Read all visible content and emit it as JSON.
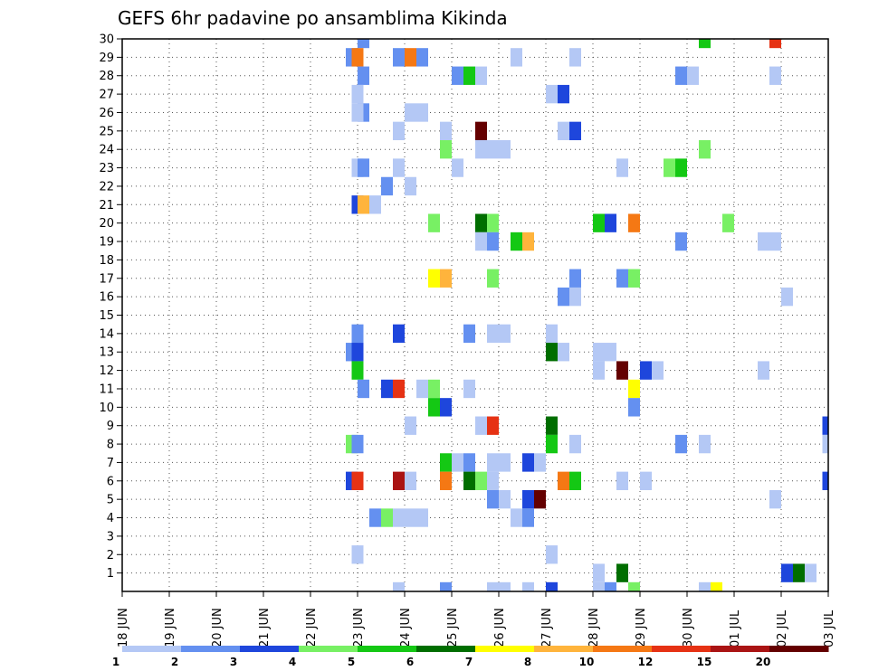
{
  "chart_data": {
    "type": "heatmap",
    "title": "GEFS 6hr padavine po ansamblima Kikinda",
    "xlabel": "",
    "ylabel": "",
    "x_tick_labels": [
      "18 JUN",
      "19 JUN",
      "20 JUN",
      "21 JUN",
      "22 JUN",
      "23 JUN",
      "24 JUN",
      "25 JUN",
      "26 JUN",
      "27 JUN",
      "28 JUN",
      "29 JUN",
      "30 JUN",
      "01 JUL",
      "02 JUL",
      "03 JUL"
    ],
    "y_tick_labels": [
      "1",
      "2",
      "3",
      "4",
      "5",
      "6",
      "7",
      "8",
      "9",
      "10",
      "11",
      "12",
      "13",
      "14",
      "15",
      "16",
      "17",
      "18",
      "19",
      "20",
      "21",
      "22",
      "23",
      "24",
      "25",
      "26",
      "27",
      "28",
      "29",
      "30"
    ],
    "xlim_days": [
      0,
      15
    ],
    "ylim": [
      0,
      30
    ],
    "grid": true,
    "legend_placement": "bottom",
    "legend": {
      "labels": [
        "1",
        "2",
        "3",
        "4",
        "5",
        "6",
        "7",
        "8",
        "10",
        "12",
        "15",
        "20"
      ],
      "colors": [
        "#b4c8f5",
        "#6490f0",
        "#1e46dc",
        "#78f064",
        "#14c814",
        "#006e00",
        "#ffff00",
        "#ffb43c",
        "#f57814",
        "#e63214",
        "#aa1414",
        "#640000"
      ]
    },
    "cell_width_days": 0.25,
    "cells": [
      {
        "d": 5.125,
        "m": 30,
        "c": 2
      },
      {
        "d": 12.375,
        "m": 30,
        "c": 5
      },
      {
        "d": 13.875,
        "m": 30,
        "c": 10
      },
      {
        "d": 4.875,
        "m": 29,
        "c": 2
      },
      {
        "d": 5.0,
        "m": 29,
        "c": 9
      },
      {
        "d": 5.875,
        "m": 29,
        "c": 2
      },
      {
        "d": 6.125,
        "m": 29,
        "c": 9
      },
      {
        "d": 6.375,
        "m": 29,
        "c": 2
      },
      {
        "d": 8.375,
        "m": 29,
        "c": 1
      },
      {
        "d": 9.625,
        "m": 29,
        "c": 1
      },
      {
        "d": 5.125,
        "m": 28,
        "c": 2
      },
      {
        "d": 7.125,
        "m": 28,
        "c": 2
      },
      {
        "d": 7.375,
        "m": 28,
        "c": 5
      },
      {
        "d": 7.625,
        "m": 28,
        "c": 1
      },
      {
        "d": 11.875,
        "m": 28,
        "c": 2
      },
      {
        "d": 12.125,
        "m": 28,
        "c": 1
      },
      {
        "d": 13.875,
        "m": 28,
        "c": 1
      },
      {
        "d": 5.0,
        "m": 27,
        "c": 1
      },
      {
        "d": 9.125,
        "m": 27,
        "c": 1
      },
      {
        "d": 9.375,
        "m": 27,
        "c": 3
      },
      {
        "d": 5.125,
        "m": 26,
        "c": 2
      },
      {
        "d": 5.0,
        "m": 26,
        "c": 1
      },
      {
        "d": 6.125,
        "m": 26,
        "c": 1
      },
      {
        "d": 6.375,
        "m": 26,
        "c": 1
      },
      {
        "d": 5.875,
        "m": 25,
        "c": 1
      },
      {
        "d": 6.875,
        "m": 25,
        "c": 1
      },
      {
        "d": 7.625,
        "m": 25,
        "c": 12
      },
      {
        "d": 9.375,
        "m": 25,
        "c": 1
      },
      {
        "d": 9.625,
        "m": 25,
        "c": 3
      },
      {
        "d": 6.875,
        "m": 24,
        "c": 4
      },
      {
        "d": 7.625,
        "m": 24,
        "c": 1
      },
      {
        "d": 7.875,
        "m": 24,
        "c": 1
      },
      {
        "d": 8.125,
        "m": 24,
        "c": 1
      },
      {
        "d": 12.375,
        "m": 24,
        "c": 4
      },
      {
        "d": 5.0,
        "m": 23,
        "c": 1
      },
      {
        "d": 5.125,
        "m": 23,
        "c": 2
      },
      {
        "d": 5.875,
        "m": 23,
        "c": 1
      },
      {
        "d": 7.125,
        "m": 23,
        "c": 1
      },
      {
        "d": 10.625,
        "m": 23,
        "c": 1
      },
      {
        "d": 11.625,
        "m": 23,
        "c": 4
      },
      {
        "d": 11.875,
        "m": 23,
        "c": 5
      },
      {
        "d": 5.625,
        "m": 22,
        "c": 2
      },
      {
        "d": 6.125,
        "m": 22,
        "c": 1
      },
      {
        "d": 5.0,
        "m": 21,
        "c": 3
      },
      {
        "d": 5.125,
        "m": 21,
        "c": 8
      },
      {
        "d": 5.375,
        "m": 21,
        "c": 1
      },
      {
        "d": 6.625,
        "m": 20,
        "c": 4
      },
      {
        "d": 7.625,
        "m": 20,
        "c": 6
      },
      {
        "d": 7.875,
        "m": 20,
        "c": 4
      },
      {
        "d": 10.125,
        "m": 20,
        "c": 5
      },
      {
        "d": 10.375,
        "m": 20,
        "c": 3
      },
      {
        "d": 10.875,
        "m": 20,
        "c": 9
      },
      {
        "d": 12.875,
        "m": 20,
        "c": 4
      },
      {
        "d": 7.625,
        "m": 19,
        "c": 1
      },
      {
        "d": 7.875,
        "m": 19,
        "c": 2
      },
      {
        "d": 8.375,
        "m": 19,
        "c": 5
      },
      {
        "d": 8.625,
        "m": 19,
        "c": 8
      },
      {
        "d": 11.875,
        "m": 19,
        "c": 2
      },
      {
        "d": 13.625,
        "m": 19,
        "c": 1
      },
      {
        "d": 13.875,
        "m": 19,
        "c": 1
      },
      {
        "d": 6.625,
        "m": 17,
        "c": 7
      },
      {
        "d": 6.875,
        "m": 17,
        "c": 8
      },
      {
        "d": 7.875,
        "m": 17,
        "c": 4
      },
      {
        "d": 9.625,
        "m": 17,
        "c": 2
      },
      {
        "d": 10.625,
        "m": 17,
        "c": 2
      },
      {
        "d": 10.875,
        "m": 17,
        "c": 4
      },
      {
        "d": 9.375,
        "m": 16,
        "c": 2
      },
      {
        "d": 9.625,
        "m": 16,
        "c": 1
      },
      {
        "d": 14.125,
        "m": 16,
        "c": 1
      },
      {
        "d": 5.0,
        "m": 14,
        "c": 2
      },
      {
        "d": 5.875,
        "m": 14,
        "c": 3
      },
      {
        "d": 7.375,
        "m": 14,
        "c": 2
      },
      {
        "d": 7.875,
        "m": 14,
        "c": 1
      },
      {
        "d": 8.125,
        "m": 14,
        "c": 1
      },
      {
        "d": 9.125,
        "m": 14,
        "c": 1
      },
      {
        "d": 4.875,
        "m": 13,
        "c": 2
      },
      {
        "d": 5.0,
        "m": 13,
        "c": 3
      },
      {
        "d": 9.125,
        "m": 13,
        "c": 6
      },
      {
        "d": 9.375,
        "m": 13,
        "c": 1
      },
      {
        "d": 10.125,
        "m": 13,
        "c": 1
      },
      {
        "d": 10.375,
        "m": 13,
        "c": 1
      },
      {
        "d": 5.0,
        "m": 12,
        "c": 5
      },
      {
        "d": 10.125,
        "m": 12,
        "c": 1
      },
      {
        "d": 10.625,
        "m": 12,
        "c": 12
      },
      {
        "d": 11.125,
        "m": 12,
        "c": 3
      },
      {
        "d": 11.375,
        "m": 12,
        "c": 1
      },
      {
        "d": 13.625,
        "m": 12,
        "c": 1
      },
      {
        "d": 5.125,
        "m": 11,
        "c": 2
      },
      {
        "d": 5.625,
        "m": 11,
        "c": 3
      },
      {
        "d": 5.875,
        "m": 11,
        "c": 10
      },
      {
        "d": 6.375,
        "m": 11,
        "c": 1
      },
      {
        "d": 6.625,
        "m": 11,
        "c": 4
      },
      {
        "d": 7.375,
        "m": 11,
        "c": 1
      },
      {
        "d": 10.875,
        "m": 11,
        "c": 7
      },
      {
        "d": 6.625,
        "m": 10,
        "c": 5
      },
      {
        "d": 6.875,
        "m": 10,
        "c": 3
      },
      {
        "d": 10.875,
        "m": 10,
        "c": 2
      },
      {
        "d": 6.125,
        "m": 9,
        "c": 1
      },
      {
        "d": 7.625,
        "m": 9,
        "c": 1
      },
      {
        "d": 7.875,
        "m": 9,
        "c": 10
      },
      {
        "d": 9.125,
        "m": 9,
        "c": 6
      },
      {
        "d": 15.0,
        "m": 9,
        "c": 3
      },
      {
        "d": 4.875,
        "m": 8,
        "c": 4
      },
      {
        "d": 5.0,
        "m": 8,
        "c": 2
      },
      {
        "d": 9.125,
        "m": 8,
        "c": 5
      },
      {
        "d": 9.625,
        "m": 8,
        "c": 1
      },
      {
        "d": 11.875,
        "m": 8,
        "c": 2
      },
      {
        "d": 12.375,
        "m": 8,
        "c": 1
      },
      {
        "d": 15.0,
        "m": 8,
        "c": 1
      },
      {
        "d": 6.875,
        "m": 7,
        "c": 5
      },
      {
        "d": 7.125,
        "m": 7,
        "c": 1
      },
      {
        "d": 7.375,
        "m": 7,
        "c": 2
      },
      {
        "d": 7.875,
        "m": 7,
        "c": 1
      },
      {
        "d": 8.125,
        "m": 7,
        "c": 1
      },
      {
        "d": 8.625,
        "m": 7,
        "c": 3
      },
      {
        "d": 8.875,
        "m": 7,
        "c": 1
      },
      {
        "d": 4.875,
        "m": 6,
        "c": 3
      },
      {
        "d": 5.0,
        "m": 6,
        "c": 10
      },
      {
        "d": 5.875,
        "m": 6,
        "c": 11
      },
      {
        "d": 6.125,
        "m": 6,
        "c": 1
      },
      {
        "d": 6.875,
        "m": 6,
        "c": 9
      },
      {
        "d": 7.375,
        "m": 6,
        "c": 6
      },
      {
        "d": 7.625,
        "m": 6,
        "c": 4
      },
      {
        "d": 7.875,
        "m": 6,
        "c": 1
      },
      {
        "d": 9.375,
        "m": 6,
        "c": 9
      },
      {
        "d": 9.625,
        "m": 6,
        "c": 5
      },
      {
        "d": 10.625,
        "m": 6,
        "c": 1
      },
      {
        "d": 11.125,
        "m": 6,
        "c": 1
      },
      {
        "d": 15.0,
        "m": 6,
        "c": 3
      },
      {
        "d": 7.875,
        "m": 5,
        "c": 2
      },
      {
        "d": 8.125,
        "m": 5,
        "c": 1
      },
      {
        "d": 8.625,
        "m": 5,
        "c": 3
      },
      {
        "d": 8.875,
        "m": 5,
        "c": 12
      },
      {
        "d": 13.875,
        "m": 5,
        "c": 1
      },
      {
        "d": 5.375,
        "m": 4,
        "c": 2
      },
      {
        "d": 5.625,
        "m": 4,
        "c": 4
      },
      {
        "d": 5.875,
        "m": 4,
        "c": 1
      },
      {
        "d": 6.125,
        "m": 4,
        "c": 1
      },
      {
        "d": 6.375,
        "m": 4,
        "c": 1
      },
      {
        "d": 8.375,
        "m": 4,
        "c": 1
      },
      {
        "d": 8.625,
        "m": 4,
        "c": 2
      },
      {
        "d": 5.0,
        "m": 2,
        "c": 1
      },
      {
        "d": 9.125,
        "m": 2,
        "c": 1
      },
      {
        "d": 10.125,
        "m": 1,
        "c": 1
      },
      {
        "d": 10.625,
        "m": 1,
        "c": 6
      },
      {
        "d": 14.125,
        "m": 1,
        "c": 3
      },
      {
        "d": 14.375,
        "m": 1,
        "c": 6
      },
      {
        "d": 14.625,
        "m": 1,
        "c": 1
      },
      {
        "d": 5.875,
        "m": 0,
        "c": 1
      },
      {
        "d": 6.875,
        "m": 0,
        "c": 2
      },
      {
        "d": 7.875,
        "m": 0,
        "c": 1
      },
      {
        "d": 8.125,
        "m": 0,
        "c": 1
      },
      {
        "d": 8.625,
        "m": 0,
        "c": 1
      },
      {
        "d": 9.125,
        "m": 0,
        "c": 3
      },
      {
        "d": 10.125,
        "m": 0,
        "c": 1
      },
      {
        "d": 10.375,
        "m": 0,
        "c": 2
      },
      {
        "d": 10.875,
        "m": 0,
        "c": 4
      },
      {
        "d": 12.375,
        "m": 0,
        "c": 1
      },
      {
        "d": 12.625,
        "m": 0,
        "c": 7
      }
    ]
  }
}
